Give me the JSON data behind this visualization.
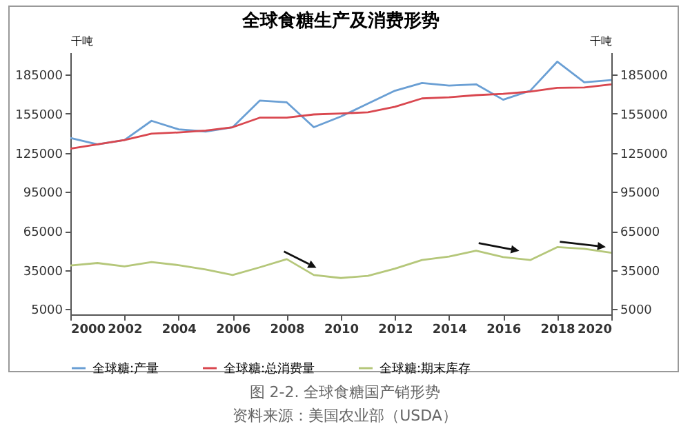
{
  "chart_data": {
    "type": "line",
    "title": "全球食糖生产及消费形势",
    "x": [
      2000,
      2001,
      2002,
      2003,
      2004,
      2005,
      2006,
      2007,
      2008,
      2009,
      2010,
      2011,
      2012,
      2013,
      2014,
      2015,
      2016,
      2017,
      2018,
      2019,
      2020
    ],
    "series": [
      {
        "name": "全球糖:产量",
        "color": "#6a9fd4",
        "values": [
          136400,
          131500,
          134700,
          149500,
          143000,
          141300,
          144600,
          165000,
          163700,
          144600,
          152800,
          162700,
          172600,
          178500,
          176500,
          177500,
          165700,
          172600,
          194900,
          179100,
          180800
        ]
      },
      {
        "name": "全球糖:总消费量",
        "color": "#d9474f",
        "values": [
          128200,
          131500,
          134700,
          139600,
          140600,
          142000,
          144600,
          151900,
          151900,
          154400,
          155100,
          156100,
          160300,
          166700,
          167600,
          169200,
          170200,
          171900,
          174800,
          175100,
          177500
        ]
      },
      {
        "name": "全球糖:期末库存",
        "color": "#b5c77a",
        "values": [
          38500,
          40400,
          37800,
          41100,
          38800,
          35500,
          31200,
          37100,
          43400,
          31200,
          28900,
          30600,
          36100,
          42700,
          45400,
          49900,
          45000,
          42700,
          52600,
          51300,
          48300
        ]
      }
    ],
    "ylabel": "千吨",
    "y2label": "千吨",
    "xlim": [
      2000,
      2020
    ],
    "xticks": [
      2000,
      2002,
      2004,
      2006,
      2008,
      2010,
      2012,
      2014,
      2016,
      2018,
      2020
    ],
    "ylim": [
      1000,
      202000
    ],
    "yticks": [
      5000,
      35000,
      65000,
      95000,
      125000,
      155000,
      185000
    ],
    "y2lim": [
      1000,
      202000
    ],
    "y2ticks": [
      5000,
      35000,
      65000,
      95000,
      125000,
      155000,
      185000
    ],
    "grid": false,
    "legend": "bottom",
    "annotations": [
      "图 2-2. 全球食糖国产销形势",
      "资料来源：美国农业部（USDA）"
    ]
  }
}
